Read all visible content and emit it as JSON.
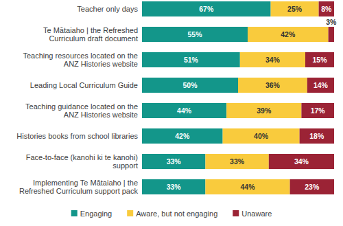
{
  "chart_data": {
    "type": "bar",
    "orientation": "horizontal",
    "stacked": true,
    "data_labels": true,
    "tick_labels": false,
    "legend": "bottom",
    "categories": [
      "Teacher only days",
      "Te Mātaiaho | the Refreshed Curriculum draft document",
      "Teaching resources located on the ANZ Histories website",
      "Leading Local Curriculum Guide",
      "Teaching guidance located on the ANZ Histories website",
      "Histories books from school libraries",
      "Face-to-face (kanohi ki te kanohi) support",
      "Implementing Te Mātaiaho | the Refreshed Curriculum support pack"
    ],
    "xlim": [
      0,
      100
    ],
    "series": [
      {
        "name": "Engaging",
        "color": "#13968a",
        "values": [
          67,
          55,
          51,
          50,
          44,
          42,
          33,
          33
        ],
        "value_labels": [
          "67%",
          "55%",
          "51%",
          "50%",
          "44%",
          "42%",
          "33%",
          "33%"
        ]
      },
      {
        "name": "Aware, but not engaging",
        "color": "#f9cb3d",
        "values": [
          25,
          42,
          34,
          36,
          39,
          40,
          33,
          44
        ],
        "value_labels": [
          "25%",
          "42%",
          "34%",
          "36%",
          "39%",
          "40%",
          "33%",
          "44%"
        ]
      },
      {
        "name": "Unaware",
        "color": "#9b2335",
        "values": [
          8,
          3,
          15,
          14,
          17,
          18,
          34,
          23
        ],
        "value_labels": [
          "8%",
          "3%",
          "15%",
          "14%",
          "17%",
          "18%",
          "34%",
          "23%"
        ]
      }
    ]
  }
}
